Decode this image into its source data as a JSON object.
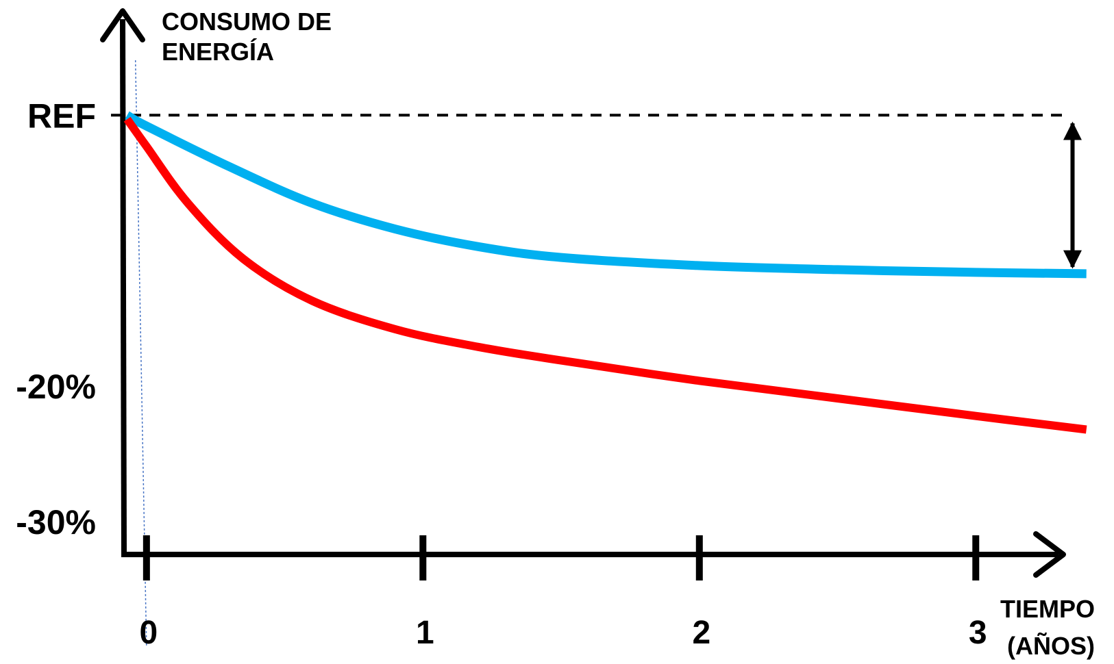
{
  "chart_data": {
    "type": "line",
    "ylabel": [
      "CONSUMO DE",
      "ENERGÍA"
    ],
    "xlabel": [
      "TIEMPO",
      "(AÑOS)"
    ],
    "x_ticks": [
      0,
      1,
      2,
      3
    ],
    "x_tick_labels": [
      "0",
      "1",
      "2",
      "3"
    ],
    "y_ticks": [
      {
        "value": 0,
        "label": "REF"
      },
      {
        "value": -20,
        "label": "-20%"
      },
      {
        "value": -30,
        "label": "-30%"
      }
    ],
    "xlim": [
      -0.53,
      3.5
    ],
    "ylim": [
      -40.5,
      8.5
    ],
    "reference_line": {
      "value": 0,
      "style": "dashed",
      "color": "#000000"
    },
    "series": [
      {
        "color": "#00b0f0",
        "points": [
          [
            -0.07,
            0
          ],
          [
            0,
            -0.8
          ],
          [
            0.3,
            -3.8
          ],
          [
            0.6,
            -6.5
          ],
          [
            0.9,
            -8.4
          ],
          [
            1.2,
            -9.7
          ],
          [
            1.5,
            -10.5
          ],
          [
            2,
            -11.1
          ],
          [
            2.5,
            -11.4
          ],
          [
            3,
            -11.6
          ],
          [
            3.4,
            -11.7
          ]
        ]
      },
      {
        "color": "#ff0000",
        "points": [
          [
            -0.07,
            -0.3
          ],
          [
            0,
            -2.3
          ],
          [
            0.15,
            -6.5
          ],
          [
            0.35,
            -10.6
          ],
          [
            0.6,
            -13.7
          ],
          [
            0.9,
            -15.8
          ],
          [
            1.2,
            -17.1
          ],
          [
            1.5,
            -18.1
          ],
          [
            2,
            -19.6
          ],
          [
            2.5,
            -20.9
          ],
          [
            3,
            -22.2
          ],
          [
            3.4,
            -23.2
          ]
        ]
      }
    ],
    "annotation": {
      "type": "double-arrow",
      "x": 3.35,
      "from": 0,
      "to": -11.7
    },
    "grid": false,
    "legend": "none"
  }
}
